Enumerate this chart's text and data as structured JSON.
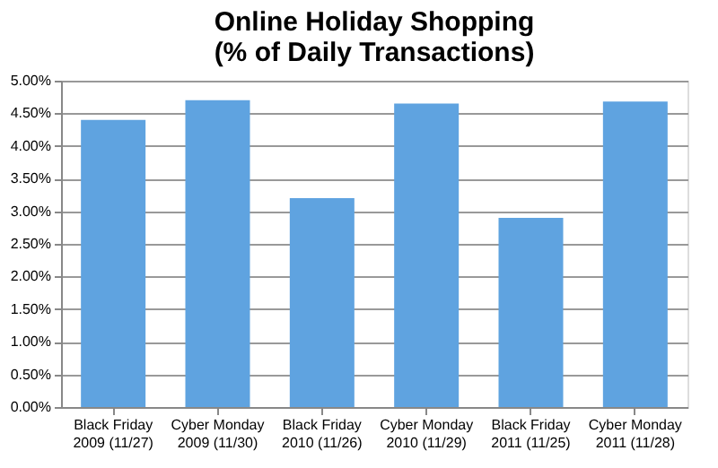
{
  "chart_data": {
    "type": "bar",
    "title": "Online Holiday Shopping\n(% of Daily Transactions)",
    "categories": [
      "Black Friday\n2009 (11/27)",
      "Cyber Monday\n2009 (11/30)",
      "Black Friday\n2010 (11/26)",
      "Cyber Monday\n2010 (11/29)",
      "Black Friday\n2011 (11/25)",
      "Cyber Monday\n2011 (11/28)"
    ],
    "values": [
      4.4,
      4.7,
      3.2,
      4.65,
      2.9,
      4.68
    ],
    "color": "#5fa3e0",
    "ylim": [
      0,
      5
    ],
    "yticks": [
      {
        "value": 0,
        "label": "0.00%"
      },
      {
        "value": 0.5,
        "label": "0.50%"
      },
      {
        "value": 1,
        "label": "1.00%"
      },
      {
        "value": 1.5,
        "label": "1.50%"
      },
      {
        "value": 2,
        "label": "2.00%"
      },
      {
        "value": 2.5,
        "label": "2.50%"
      },
      {
        "value": 3,
        "label": "3.00%"
      },
      {
        "value": 3.5,
        "label": "3.50%"
      },
      {
        "value": 4,
        "label": "4.00%"
      },
      {
        "value": 4.5,
        "label": "4.50%"
      },
      {
        "value": 5,
        "label": "5.00%"
      }
    ],
    "grid": "y"
  }
}
